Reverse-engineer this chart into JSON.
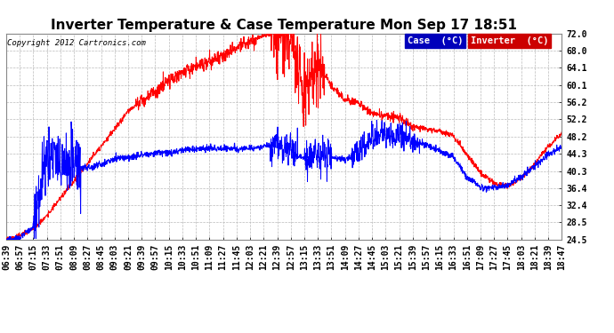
{
  "title": "Inverter Temperature & Case Temperature Mon Sep 17 18:51",
  "copyright": "Copyright 2012 Cartronics.com",
  "yticks": [
    24.5,
    28.5,
    32.4,
    36.4,
    40.3,
    44.3,
    48.2,
    52.2,
    56.2,
    60.1,
    64.1,
    68.0,
    72.0
  ],
  "ylim": [
    24.5,
    72.0
  ],
  "legend_labels": [
    "Case  (°C)",
    "Inverter  (°C)"
  ],
  "line_case_color": "#ff0000",
  "line_inverter_color": "#0000ff",
  "background_color": "#ffffff",
  "grid_color": "#bbbbbb",
  "xtick_labels": [
    "06:39",
    "06:57",
    "07:15",
    "07:33",
    "07:51",
    "08:09",
    "08:27",
    "08:45",
    "09:03",
    "09:21",
    "09:39",
    "09:57",
    "10:15",
    "10:33",
    "10:51",
    "11:09",
    "11:27",
    "11:45",
    "12:03",
    "12:21",
    "12:39",
    "12:57",
    "13:15",
    "13:33",
    "13:51",
    "14:09",
    "14:27",
    "14:45",
    "15:03",
    "15:21",
    "15:39",
    "15:57",
    "16:15",
    "16:33",
    "16:51",
    "17:09",
    "17:27",
    "17:45",
    "18:03",
    "18:21",
    "18:39",
    "18:47"
  ],
  "title_fontsize": 11,
  "tick_fontsize": 7
}
